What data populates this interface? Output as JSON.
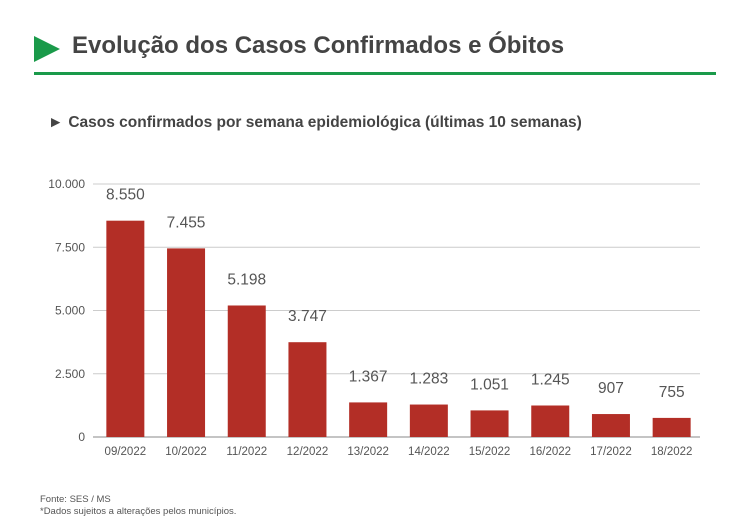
{
  "header": {
    "title": "Evolução dos Casos Confirmados e Óbitos",
    "arrow_icon": "play-triangle-icon",
    "accent_color": "#1a9a4a"
  },
  "subtitle": {
    "marker": "►",
    "text": "Casos confirmados por semana epidemiológica (últimas 10 semanas)"
  },
  "chart_data": {
    "type": "bar",
    "categories": [
      "09/2022",
      "10/2022",
      "11/2022",
      "12/2022",
      "13/2022",
      "14/2022",
      "15/2022",
      "16/2022",
      "17/2022",
      "18/2022"
    ],
    "values": [
      8550,
      7455,
      5198,
      3747,
      1367,
      1283,
      1051,
      1245,
      907,
      755
    ],
    "value_labels": [
      "8.550",
      "7.455",
      "5.198",
      "3.747",
      "1.367",
      "1.283",
      "1.051",
      "1.245",
      "907",
      "755"
    ],
    "ylim": [
      0,
      10000
    ],
    "yticks": [
      0,
      2500,
      5000,
      7500,
      10000
    ],
    "ytick_labels": [
      "0",
      "2.500",
      "5.000",
      "7.500",
      "10.000"
    ],
    "bar_color": "#b32e26",
    "grid": true,
    "xlabel": "",
    "ylabel": ""
  },
  "footer": {
    "source": "Fonte: SES / MS",
    "note": "*Dados sujeitos a alterações pelos municípios."
  }
}
